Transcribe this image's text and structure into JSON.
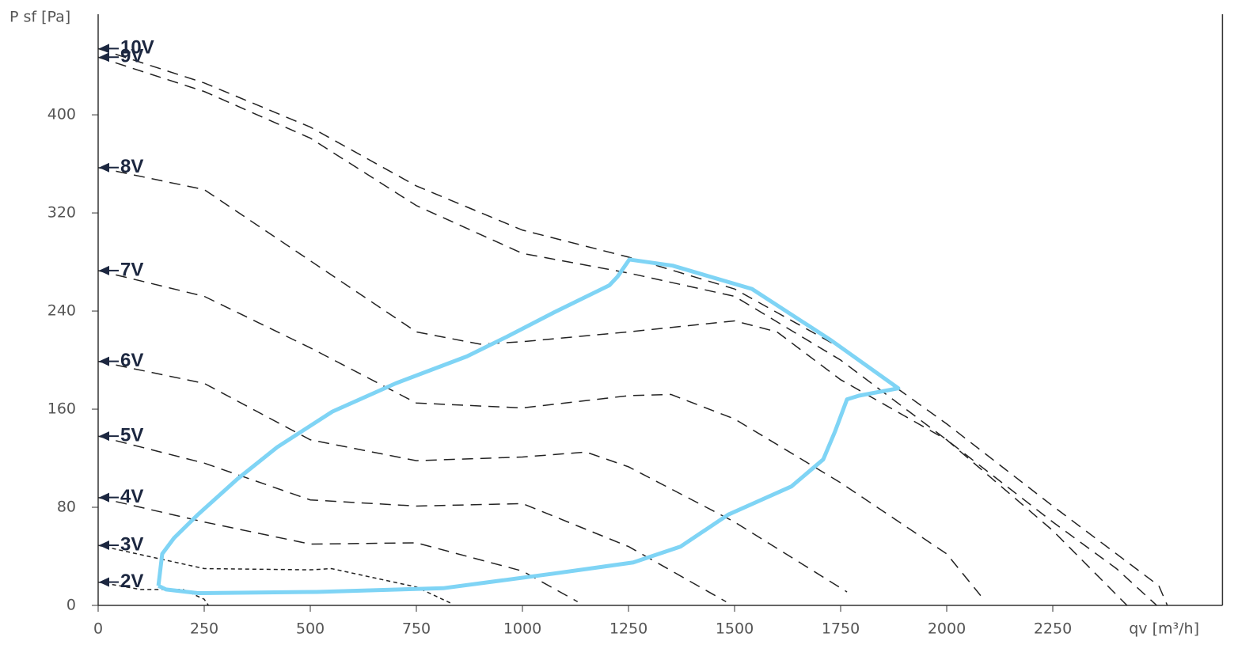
{
  "chart_data": {
    "type": "line",
    "xlabel": "qv [m³/h]",
    "ylabel": "P sf [Pa]",
    "xlim": [
      0,
      2650
    ],
    "ylim": [
      0,
      482
    ],
    "xticks": [
      0,
      250,
      500,
      750,
      1000,
      1250,
      1500,
      1750,
      2000,
      2250
    ],
    "yticks": [
      0,
      80,
      160,
      240,
      320,
      400
    ],
    "series": [
      {
        "name": "10V",
        "color": "#222222",
        "x": [
          0,
          250,
          500,
          750,
          1000,
          1250,
          1500,
          1750,
          2000,
          2250,
          2500,
          2520
        ],
        "values": [
          454,
          426,
          390,
          342,
          306,
          284,
          258,
          210,
          148,
          81,
          16,
          0
        ]
      },
      {
        "name": "9V",
        "color": "#222222",
        "x": [
          0,
          250,
          500,
          750,
          1000,
          1250,
          1500,
          1750,
          2000,
          2250,
          2400,
          2495
        ],
        "values": [
          447,
          419,
          381,
          326,
          287,
          271,
          252,
          200,
          135,
          68,
          30,
          0
        ]
      },
      {
        "name": "8V",
        "color": "#222222",
        "x": [
          0,
          250,
          500,
          750,
          900,
          1000,
          1250,
          1500,
          1600,
          1750,
          2000,
          2250,
          2425
        ],
        "values": [
          357,
          339,
          281,
          223,
          213,
          215,
          223,
          232,
          223,
          184,
          135,
          61,
          0
        ]
      },
      {
        "name": "7V",
        "color": "#222222",
        "x": [
          0,
          250,
          500,
          750,
          1000,
          1250,
          1350,
          1500,
          1750,
          2000,
          2080
        ],
        "values": [
          273,
          252,
          210,
          165,
          161,
          171,
          172,
          152,
          100,
          42,
          8
        ]
      },
      {
        "name": "6V",
        "color": "#222222",
        "x": [
          0,
          250,
          500,
          750,
          1000,
          1150,
          1250,
          1500,
          1765
        ],
        "values": [
          199,
          181,
          135,
          118,
          121,
          125,
          113,
          68,
          11
        ]
      },
      {
        "name": "5V",
        "color": "#222222",
        "x": [
          0,
          250,
          500,
          750,
          1000,
          1250,
          1480
        ],
        "values": [
          138,
          116,
          86,
          81,
          83,
          48,
          3
        ]
      },
      {
        "name": "4V",
        "color": "#222222",
        "x": [
          0,
          250,
          500,
          750,
          1000,
          1130
        ],
        "values": [
          88,
          68,
          50,
          51,
          28,
          3
        ]
      },
      {
        "name": "3V",
        "color": "#222222",
        "x": [
          0,
          250,
          500,
          550,
          750,
          830
        ],
        "values": [
          49,
          30,
          29,
          30,
          15,
          2
        ]
      },
      {
        "name": "2V",
        "color": "#222222",
        "x": [
          0,
          100,
          200,
          250,
          260
        ],
        "values": [
          19,
          13,
          13,
          5,
          0
        ]
      }
    ],
    "envelope": {
      "color": "#7fd4f5",
      "x": [
        142,
        151,
        179,
        235,
        328,
        422,
        552,
        701,
        869,
        963,
        1075,
        1205,
        1224,
        1252,
        1354,
        1541,
        1728,
        1886,
        1793,
        1765,
        1737,
        1709,
        1634,
        1485,
        1373,
        1261,
        1075,
        813,
        515,
        235,
        160,
        142
      ],
      "values": [
        16,
        42,
        55,
        74,
        103,
        129,
        158,
        181,
        203,
        219,
        239,
        261,
        268,
        282,
        277,
        258,
        216,
        177,
        171,
        168,
        142,
        119,
        97,
        74,
        48,
        35,
        26,
        14,
        11,
        10,
        13,
        16
      ]
    }
  }
}
